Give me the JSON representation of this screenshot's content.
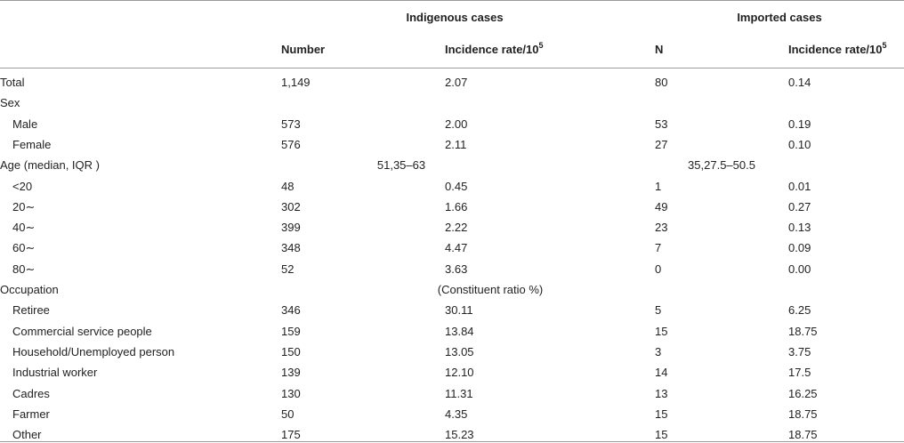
{
  "header": {
    "group1": "Indigenous cases",
    "group2": "Imported cases",
    "col_number": "Number",
    "col_rate": "Incidence rate/10",
    "col_rate_sup": "5",
    "col_n": "N",
    "col_rate2": "Incidence rate/10",
    "col_rate2_sup": "5"
  },
  "rows": [
    {
      "label": "Total",
      "indent": false,
      "c1": "1,149",
      "c2": "2.07",
      "c3": "80",
      "c4": "0.14"
    },
    {
      "label": "Sex",
      "indent": false,
      "c1": "",
      "c2": "",
      "c3": "",
      "c4": ""
    },
    {
      "label": "Male",
      "indent": true,
      "c1": "573",
      "c2": "2.00",
      "c3": "53",
      "c4": "0.19"
    },
    {
      "label": "Female",
      "indent": true,
      "c1": "576",
      "c2": "2.11",
      "c3": "27",
      "c4": "0.10"
    },
    {
      "label": "Age (median, IQR )",
      "indent": false,
      "span1": "51,35–63",
      "span2": "35,27.5–50.5"
    },
    {
      "label": "<20",
      "indent": true,
      "c1": "48",
      "c2": "0.45",
      "c3": "1",
      "c4": "0.01"
    },
    {
      "label": "20∼",
      "indent": true,
      "c1": "302",
      "c2": "1.66",
      "c3": "49",
      "c4": "0.27"
    },
    {
      "label": "40∼",
      "indent": true,
      "c1": "399",
      "c2": "2.22",
      "c3": "23",
      "c4": "0.13"
    },
    {
      "label": "60∼",
      "indent": true,
      "c1": "348",
      "c2": "4.47",
      "c3": "7",
      "c4": "0.09"
    },
    {
      "label": "80∼",
      "indent": true,
      "c1": "52",
      "c2": "3.63",
      "c3": "0",
      "c4": "0.00"
    },
    {
      "label": "Occupation",
      "indent": false,
      "note": "(Constituent ratio %)"
    },
    {
      "label": "Retiree",
      "indent": true,
      "c1": "346",
      "c2": "30.11",
      "c3": "5",
      "c4": "6.25"
    },
    {
      "label": "Commercial service people",
      "indent": true,
      "c1": "159",
      "c2": "13.84",
      "c3": "15",
      "c4": "18.75"
    },
    {
      "label": "Household/Unemployed person",
      "indent": true,
      "c1": "150",
      "c2": "13.05",
      "c3": "3",
      "c4": "3.75"
    },
    {
      "label": "Industrial worker",
      "indent": true,
      "c1": "139",
      "c2": "12.10",
      "c3": "14",
      "c4": "17.5"
    },
    {
      "label": "Cadres",
      "indent": true,
      "c1": "130",
      "c2": "11.31",
      "c3": "13",
      "c4": "16.25"
    },
    {
      "label": "Farmer",
      "indent": true,
      "c1": "50",
      "c2": "4.35",
      "c3": "15",
      "c4": "18.75"
    },
    {
      "label": "Other",
      "indent": true,
      "c1": "175",
      "c2": "15.23",
      "c3": "15",
      "c4": "18.75"
    }
  ]
}
